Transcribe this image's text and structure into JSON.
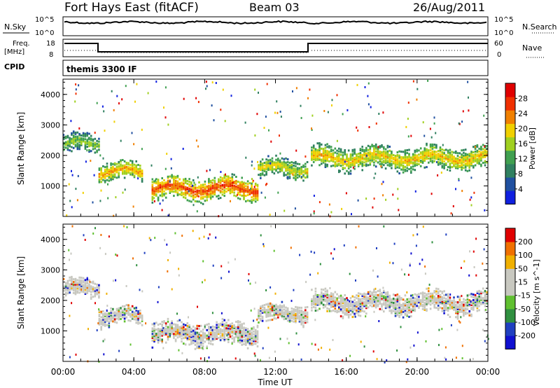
{
  "header": {
    "title_left": "Fort Hays East (fitACF)",
    "title_center": "Beam 03",
    "title_right": "26/Aug/2011"
  },
  "noise_panel": {
    "left_label": "N.Sky",
    "right_label": "N.Search",
    "left_ticks": [
      "10^5",
      "10^0"
    ],
    "right_ticks": [
      "10^5",
      "10^0"
    ]
  },
  "freq_panel": {
    "left_label_1": "Freq.",
    "left_label_2": "[MHz]",
    "left_ticks": [
      "18",
      "8"
    ],
    "right_label": "Nave",
    "right_ticks": [
      "60",
      "0"
    ]
  },
  "cpid": {
    "label": "CPID",
    "value": "themis 3300 IF"
  },
  "colors": {
    "velocity_scale": [
      "#e00000",
      "#f07000",
      "#f0b000",
      "#c8c8c0",
      "#c8c8c0",
      "#60c030",
      "#309040",
      "#2040c0",
      "#1010d0"
    ],
    "power_scale": [
      "#1020e0",
      "#2050a0",
      "#308060",
      "#40a050",
      "#a0d020",
      "#f0d000",
      "#f08000",
      "#f03000",
      "#e00000"
    ]
  },
  "chart_data": [
    {
      "type": "heatmap",
      "title": "",
      "xlabel": "Time UT",
      "ylabel": "Slant Range [km]",
      "xlim": [
        "00:00",
        "24:00"
      ],
      "ylim": [
        0,
        4500
      ],
      "x_ticks": [
        "00:00",
        "04:00",
        "08:00",
        "12:00",
        "16:00",
        "20:00",
        "00:00"
      ],
      "y_ticks": [
        "1000",
        "2000",
        "3000",
        "4000"
      ],
      "colorbar": {
        "label": "Power [dB]",
        "ticks": [
          "4",
          "8",
          "12",
          "16",
          "20",
          "24",
          "28"
        ],
        "range": [
          0,
          30
        ]
      },
      "bands": [
        {
          "t": [
            0.0,
            2.0
          ],
          "range_km": [
            2200,
            2600
          ],
          "power_db": 14
        },
        {
          "t": [
            2.0,
            4.5
          ],
          "range_km": [
            1300,
            1700
          ],
          "power_db": 22
        },
        {
          "t": [
            5.0,
            11.0
          ],
          "range_km": [
            700,
            1200
          ],
          "power_db": 26
        },
        {
          "t": [
            11.0,
            13.8
          ],
          "range_km": [
            1400,
            1800
          ],
          "power_db": 18
        },
        {
          "t": [
            14.0,
            24.0
          ],
          "range_km": [
            1700,
            2200
          ],
          "power_db": 20
        }
      ]
    },
    {
      "type": "heatmap",
      "title": "",
      "xlabel": "Time UT",
      "ylabel": "Slant Range [km]",
      "xlim": [
        "00:00",
        "24:00"
      ],
      "ylim": [
        0,
        4500
      ],
      "x_ticks": [
        "00:00",
        "04:00",
        "08:00",
        "12:00",
        "16:00",
        "20:00",
        "00:00"
      ],
      "y_ticks": [
        "1000",
        "2000",
        "3000",
        "4000"
      ],
      "colorbar": {
        "label": "Velocity [m s^-1]",
        "ticks": [
          "200",
          "100",
          "50",
          "15",
          "-15",
          "-50",
          "-100",
          "-200"
        ],
        "range": [
          -250,
          250
        ]
      },
      "bands": [
        {
          "t": [
            0.0,
            2.0
          ],
          "range_km": [
            2200,
            2600
          ],
          "velocity": 0
        },
        {
          "t": [
            2.0,
            4.5
          ],
          "range_km": [
            1300,
            1700
          ],
          "velocity": 0
        },
        {
          "t": [
            5.0,
            11.0
          ],
          "range_km": [
            700,
            1200
          ],
          "velocity": 0
        },
        {
          "t": [
            11.0,
            13.8
          ],
          "range_km": [
            1400,
            1800
          ],
          "velocity": 0
        },
        {
          "t": [
            14.0,
            24.0
          ],
          "range_km": [
            1700,
            2200
          ],
          "velocity": 0
        }
      ]
    }
  ]
}
